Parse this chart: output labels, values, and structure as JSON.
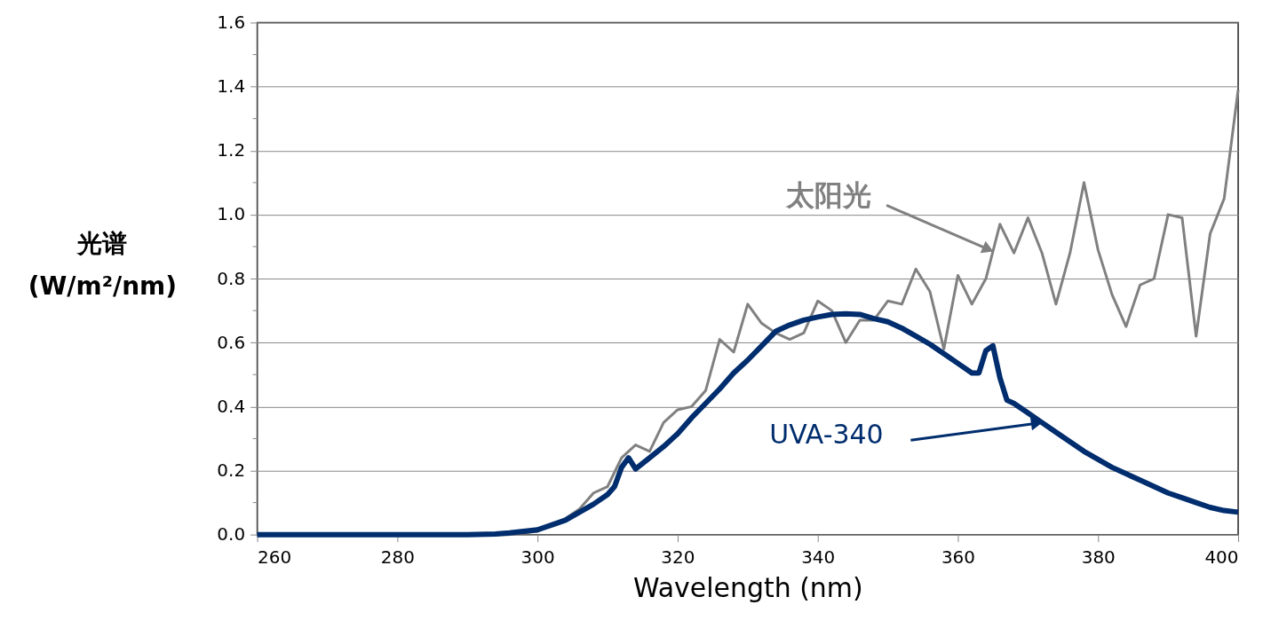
{
  "chart_data": {
    "type": "line",
    "xlabel": "Wavelength (nm)",
    "ylabel": "光谱\n(W/m²/nm)",
    "xlim": [
      260,
      400
    ],
    "xticks": [
      260,
      280,
      300,
      320,
      340,
      360,
      380,
      400
    ],
    "ylim": [
      0,
      1.6
    ],
    "yticks": [
      {
        "value": 0,
        "label": "0.0"
      },
      {
        "value": 0.2,
        "label": "0.2"
      },
      {
        "value": 0.4,
        "label": "0.4"
      },
      {
        "value": 0.6,
        "label": "0.6"
      },
      {
        "value": 0.8,
        "label": "0.8"
      },
      {
        "value": 1.0,
        "label": "1.0"
      },
      {
        "value": 1.2,
        "label": "1.2"
      },
      {
        "value": 1.4,
        "label": "1.4"
      },
      {
        "value": 1.6,
        "label": "1.6"
      }
    ],
    "grid": "y",
    "series": [
      {
        "color": "#808080",
        "x": [
          260,
          270,
          280,
          290,
          296,
          298,
          300,
          302,
          304,
          306,
          308,
          310,
          312,
          314,
          316,
          318,
          320,
          322,
          324,
          326,
          328,
          330,
          332,
          334,
          336,
          338,
          340,
          342,
          344,
          346,
          348,
          350,
          352,
          354,
          356,
          358,
          360,
          362,
          364,
          366,
          368,
          370,
          372,
          374,
          376,
          378,
          380,
          382,
          384,
          386,
          388,
          390,
          392,
          394,
          396,
          398,
          400
        ],
        "values": [
          0,
          0,
          0,
          0,
          0,
          0.005,
          0.01,
          0.03,
          0.05,
          0.08,
          0.13,
          0.15,
          0.24,
          0.28,
          0.26,
          0.35,
          0.39,
          0.4,
          0.45,
          0.61,
          0.57,
          0.72,
          0.66,
          0.63,
          0.61,
          0.63,
          0.73,
          0.7,
          0.6,
          0.67,
          0.67,
          0.73,
          0.72,
          0.83,
          0.76,
          0.58,
          0.81,
          0.72,
          0.8,
          0.97,
          0.88,
          0.99,
          0.88,
          0.72,
          0.88,
          1.1,
          0.89,
          0.75,
          0.65,
          0.78,
          0.8,
          1.0,
          0.99,
          0.62,
          0.94,
          1.05,
          1.39
        ]
      },
      {
        "color": "#002d6e",
        "x": [
          260,
          270,
          280,
          290,
          294,
          296,
          298,
          300,
          302,
          304,
          306,
          308,
          310,
          311,
          312,
          313,
          314,
          316,
          318,
          320,
          322,
          324,
          326,
          328,
          330,
          332,
          334,
          336,
          338,
          340,
          342,
          344,
          346,
          348,
          350,
          352,
          354,
          356,
          358,
          360,
          362,
          363,
          364,
          365,
          366,
          367,
          368,
          370,
          372,
          374,
          376,
          378,
          380,
          382,
          384,
          386,
          388,
          390,
          392,
          394,
          396,
          398,
          400
        ],
        "values": [
          0,
          0,
          0,
          0,
          0.002,
          0.005,
          0.01,
          0.015,
          0.03,
          0.045,
          0.07,
          0.095,
          0.125,
          0.15,
          0.21,
          0.24,
          0.205,
          0.24,
          0.275,
          0.315,
          0.365,
          0.41,
          0.455,
          0.505,
          0.545,
          0.59,
          0.635,
          0.655,
          0.67,
          0.68,
          0.688,
          0.69,
          0.688,
          0.675,
          0.665,
          0.645,
          0.62,
          0.595,
          0.565,
          0.535,
          0.505,
          0.505,
          0.575,
          0.59,
          0.49,
          0.42,
          0.41,
          0.38,
          0.35,
          0.32,
          0.29,
          0.26,
          0.235,
          0.21,
          0.19,
          0.17,
          0.15,
          0.13,
          0.115,
          0.1,
          0.085,
          0.075,
          0.07
        ]
      }
    ],
    "annotations": [
      {
        "text": "太阳光",
        "x": 365,
        "y": 0.885
      },
      {
        "text": "UVA-340",
        "x": 372,
        "y": 0.35
      }
    ]
  }
}
